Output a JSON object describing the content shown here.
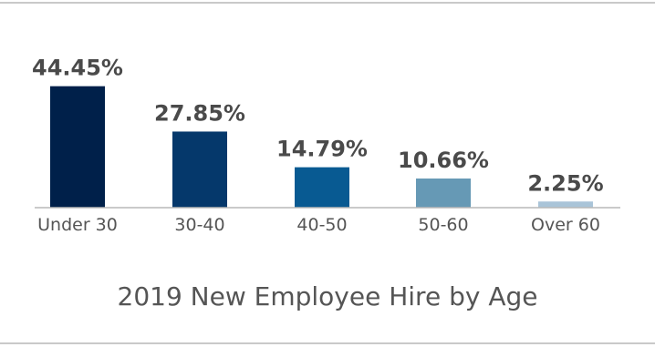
{
  "chart_data": {
    "type": "bar",
    "title": "2019 New Employee Hire by Age",
    "categories": [
      "Under 30",
      "30-40",
      "40-50",
      "50-60",
      "Over 60"
    ],
    "values": [
      44.45,
      27.85,
      14.79,
      10.66,
      2.25
    ],
    "value_labels": [
      "44.45%",
      "27.85%",
      "14.79%",
      "10.66%",
      "2.25%"
    ],
    "colors": [
      "#00204a",
      "#05386b",
      "#085a92",
      "#6699b5",
      "#a9c4d8"
    ],
    "xlabel": "",
    "ylabel": "",
    "ylim": [
      0,
      50
    ],
    "grid": false,
    "legend": "none"
  }
}
